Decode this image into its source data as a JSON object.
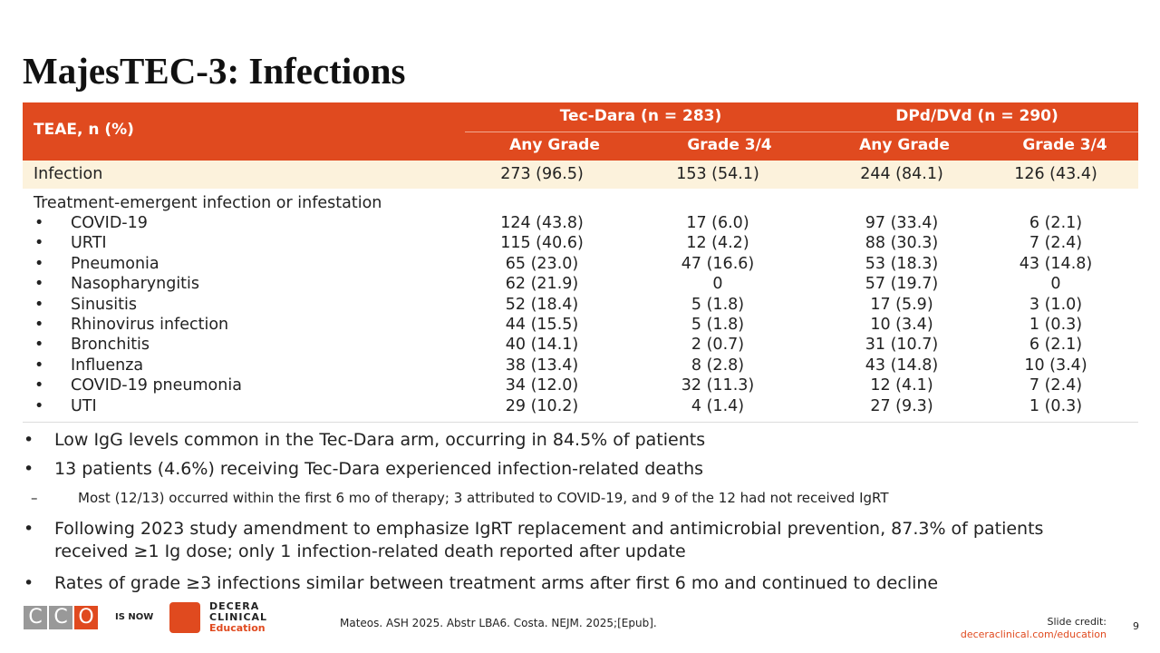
{
  "title": "MajesTEC-3: Infections",
  "table": {
    "header": {
      "label": "TEAE, n (%)",
      "groups": [
        "Tec-Dara (n = 283)",
        "DPd/DVd (n = 290)"
      ],
      "columns": [
        "Any Grade",
        "Grade 3/4",
        "Any Grade",
        "Grade 3/4"
      ]
    },
    "summary_row": [
      "Infection",
      "273 (96.5)",
      "153 (54.1)",
      "244 (84.1)",
      "126 (43.4)"
    ],
    "section_label": "Treatment-emergent infection or infestation",
    "rows": [
      [
        "COVID-19",
        "124 (43.8)",
        "17 (6.0)",
        "97 (33.4)",
        "6 (2.1)"
      ],
      [
        "URTI",
        "115 (40.6)",
        "12 (4.2)",
        "88 (30.3)",
        "7 (2.4)"
      ],
      [
        "Pneumonia",
        "65 (23.0)",
        "47 (16.6)",
        "53 (18.3)",
        "43 (14.8)"
      ],
      [
        "Nasopharyngitis",
        "62 (21.9)",
        "0",
        "57 (19.7)",
        "0"
      ],
      [
        "Sinusitis",
        "52 (18.4)",
        "5 (1.8)",
        "17 (5.9)",
        "3 (1.0)"
      ],
      [
        "Rhinovirus infection",
        "44 (15.5)",
        "5 (1.8)",
        "10 (3.4)",
        "1 (0.3)"
      ],
      [
        "Bronchitis",
        "40 (14.1)",
        "2 (0.7)",
        "31 (10.7)",
        "6 (2.1)"
      ],
      [
        "Influenza",
        "38 (13.4)",
        "8 (2.8)",
        "43 (14.8)",
        "10 (3.4)"
      ],
      [
        "COVID-19 pneumonia",
        "34 (12.0)",
        "32 (11.3)",
        "12 (4.1)",
        "7 (2.4)"
      ],
      [
        "UTI",
        "29 (10.2)",
        "4 (1.4)",
        "27 (9.3)",
        "1 (0.3)"
      ]
    ]
  },
  "bullets": [
    {
      "text": "Low IgG levels common in the Tec-Dara arm, occurring in 84.5% of patients"
    },
    {
      "text": "13 patients (4.6%) receiving Tec-Dara experienced infection-related deaths",
      "subs": [
        "Most (12/13) occurred within the first 6 mo of therapy; 3 attributed to COVID-19, and 9 of the 12 had not received IgRT"
      ]
    },
    {
      "text": "Following 2023 study amendment to emphasize IgRT replacement and antimicrobial prevention, 87.3% of patients received ≥1 Ig dose; only 1 infection-related death reported after update"
    },
    {
      "text": "Rates of grade ≥3 infections similar between treatment arms after first 6 mo and continued to decline"
    }
  ],
  "footer": {
    "logo_old": [
      "C",
      "C",
      "O"
    ],
    "transition": "IS NOW",
    "logo_new": [
      "DECERA",
      "CLINICAL",
      "Education"
    ],
    "citation": "Mateos. ASH 2025. Abstr LBA6. Costa. NEJM. 2025;[Epub].",
    "credit_label": "Slide credit:",
    "credit_link": "deceraclinical.com/education",
    "page": "9"
  }
}
